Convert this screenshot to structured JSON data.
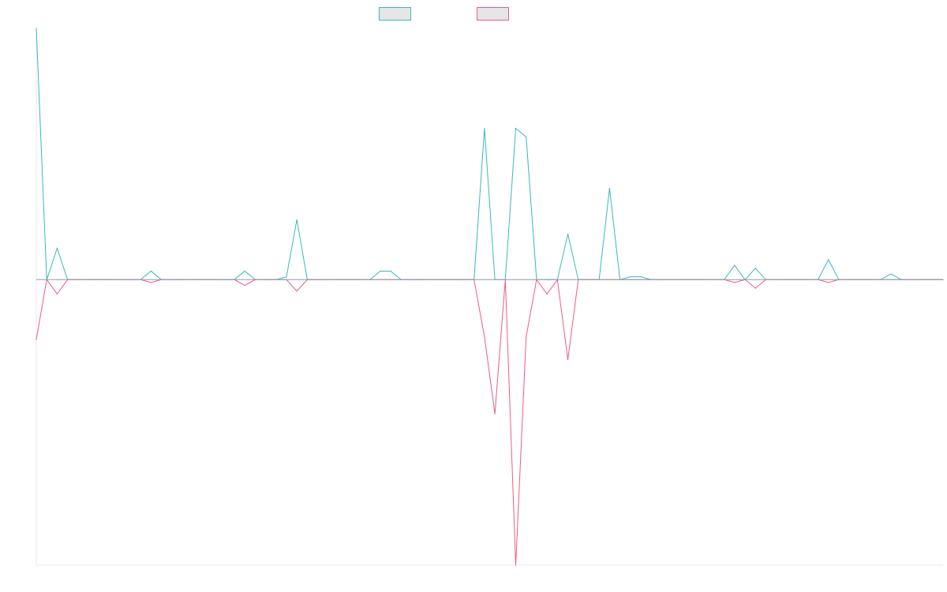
{
  "chart_data": {
    "type": "line",
    "title": "",
    "xlabel": "",
    "ylabel": "",
    "legend_position": "top-center",
    "grid": false,
    "xlim": [
      0,
      87
    ],
    "ylim": [
      -100,
      88
    ],
    "baseline": 0,
    "series": [
      {
        "name": "",
        "color": "#36b9b8",
        "fill": "#e6e6e6",
        "values": [
          88,
          0,
          11,
          0,
          0,
          0,
          0,
          0,
          0,
          0,
          0,
          3,
          0,
          0,
          0,
          0,
          0,
          0,
          0,
          0,
          3,
          0,
          0,
          0,
          1,
          21,
          0,
          0,
          0,
          0,
          0,
          0,
          0,
          3,
          3,
          0,
          0,
          0,
          0,
          0,
          0,
          0,
          0,
          53,
          0,
          0,
          53,
          50,
          0,
          0,
          0,
          16,
          0,
          0,
          0,
          32,
          0,
          1,
          1,
          0,
          0,
          0,
          0,
          0,
          0,
          0,
          0,
          5,
          0,
          4,
          0,
          0,
          0,
          0,
          0,
          0,
          7,
          0,
          0,
          0,
          0,
          0,
          2,
          0,
          0,
          0,
          0,
          0
        ]
      },
      {
        "name": "",
        "color": "#ee5c81",
        "fill": "#e6e6e6",
        "values": [
          -21,
          0,
          -5,
          0,
          0,
          0,
          0,
          0,
          0,
          0,
          0,
          -1,
          0,
          0,
          0,
          0,
          0,
          0,
          0,
          0,
          -2,
          0,
          0,
          0,
          0,
          -4,
          0,
          0,
          0,
          0,
          0,
          0,
          0,
          0,
          0,
          0,
          0,
          0,
          0,
          0,
          0,
          0,
          0,
          -20,
          -47,
          0,
          -100,
          -20,
          0,
          -5,
          0,
          -28,
          0,
          0,
          0,
          0,
          0,
          0,
          0,
          0,
          0,
          0,
          0,
          0,
          0,
          0,
          0,
          -1,
          0,
          -3,
          0,
          0,
          0,
          0,
          0,
          0,
          -1,
          0,
          0,
          0,
          0,
          0,
          0,
          0,
          0,
          0,
          0,
          0
        ]
      }
    ]
  }
}
